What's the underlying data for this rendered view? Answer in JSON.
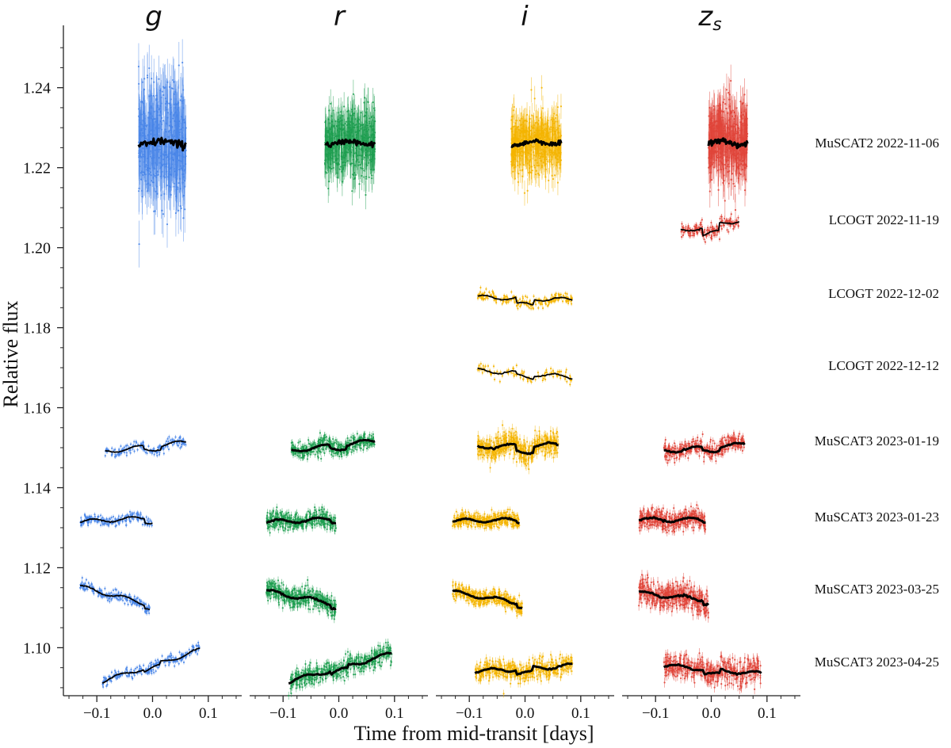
{
  "chart_data": {
    "type": "scatter",
    "panel_titles": [
      "g",
      "r",
      "i",
      "z",
      "s"
    ],
    "xlabel": "Time from mid-transit [days]",
    "ylabel": "Relative flux",
    "x_ticks": [
      -0.1,
      0.0,
      0.1
    ],
    "x_tick_labels": [
      "−0.1",
      "0.0",
      "0.1"
    ],
    "xlim": [
      -0.16,
      0.16
    ],
    "y_ticks": [
      1.1,
      1.12,
      1.14,
      1.16,
      1.18,
      1.2,
      1.22,
      1.24
    ],
    "y_tick_labels": [
      "1.10",
      "1.12",
      "1.14",
      "1.16",
      "1.18",
      "1.20",
      "1.22",
      "1.24"
    ],
    "ylim": [
      1.088,
      1.254
    ],
    "colors": {
      "g": "#4a86e8",
      "r": "#1e9e50",
      "i": "#f4b400",
      "zs": "#e0453a",
      "model": "#000000"
    },
    "rows": [
      "MuSCAT2 2022-11-06",
      "LCOGT 2022-11-19",
      "LCOGT 2022-12-02",
      "LCOGT 2022-12-12",
      "MuSCAT3 2023-01-19",
      "MuSCAT3 2023-01-23",
      "MuSCAT3 2023-03-25",
      "MuSCAT3 2023-04-25"
    ],
    "series": [
      {
        "panel": 0,
        "row": 0,
        "x_start": -0.025,
        "x_end": 0.06,
        "base": 1.2262,
        "slope": 0,
        "depth": 0,
        "scatter": 0.013,
        "dots": 520
      },
      {
        "panel": 1,
        "row": 0,
        "x_start": -0.025,
        "x_end": 0.065,
        "base": 1.2262,
        "slope": 0,
        "depth": 0,
        "scatter": 0.008,
        "dots": 520
      },
      {
        "panel": 2,
        "row": 0,
        "x_start": -0.025,
        "x_end": 0.065,
        "base": 1.2262,
        "slope": 0.004,
        "depth": 0,
        "scatter": 0.007,
        "dots": 520
      },
      {
        "panel": 3,
        "row": 0,
        "x_start": -0.005,
        "x_end": 0.065,
        "base": 1.2262,
        "slope": 0,
        "depth": 0,
        "scatter": 0.009,
        "dots": 500
      },
      {
        "panel": 3,
        "row": 1,
        "x_start": -0.055,
        "x_end": 0.05,
        "base": 1.2055,
        "slope": 0.026,
        "depth": 0.002,
        "scatter": 0.0015,
        "dots": 170
      },
      {
        "panel": 2,
        "row": 2,
        "x_start": -0.085,
        "x_end": 0.085,
        "base": 1.1873,
        "slope": -0.004,
        "depth": 0.0015,
        "scatter": 0.0012,
        "dots": 220
      },
      {
        "panel": 2,
        "row": 3,
        "x_start": -0.085,
        "x_end": 0.085,
        "base": 1.1685,
        "slope": -0.01,
        "depth": 0.0008,
        "scatter": 0.0013,
        "dots": 110
      },
      {
        "panel": 0,
        "row": 4,
        "x_start": -0.085,
        "x_end": 0.06,
        "base": 1.1502,
        "slope": 0.016,
        "depth": 0.0008,
        "scatter": 0.0012,
        "dots": 170
      },
      {
        "panel": 1,
        "row": 4,
        "x_start": -0.085,
        "x_end": 0.065,
        "base": 1.1505,
        "slope": 0.016,
        "depth": 0.0008,
        "scatter": 0.0018,
        "dots": 420
      },
      {
        "panel": 2,
        "row": 4,
        "x_start": -0.085,
        "x_end": 0.06,
        "base": 1.1505,
        "slope": 0.004,
        "depth": 0.0015,
        "scatter": 0.0028,
        "dots": 460
      },
      {
        "panel": 3,
        "row": 4,
        "x_start": -0.085,
        "x_end": 0.06,
        "base": 1.15,
        "slope": 0.012,
        "depth": 0.0008,
        "scatter": 0.0018,
        "dots": 360
      },
      {
        "panel": 0,
        "row": 5,
        "x_start": -0.13,
        "x_end": 0.0,
        "base": 1.132,
        "slope": 0.008,
        "depth": 0.001,
        "scatter": 0.0012,
        "dots": 200
      },
      {
        "panel": 1,
        "row": 5,
        "x_start": -0.13,
        "x_end": -0.005,
        "base": 1.1318,
        "slope": 0.006,
        "depth": 0.0005,
        "scatter": 0.002,
        "dots": 380
      },
      {
        "panel": 2,
        "row": 5,
        "x_start": -0.13,
        "x_end": -0.01,
        "base": 1.1318,
        "slope": 0.002,
        "depth": 0.0004,
        "scatter": 0.0017,
        "dots": 380
      },
      {
        "panel": 3,
        "row": 5,
        "x_start": -0.13,
        "x_end": -0.01,
        "base": 1.132,
        "slope": 0,
        "depth": 0.0004,
        "scatter": 0.0022,
        "dots": 380
      },
      {
        "panel": 0,
        "row": 6,
        "x_start": -0.13,
        "x_end": -0.005,
        "base": 1.113,
        "slope": -0.036,
        "depth": 0.0008,
        "scatter": 0.0012,
        "dots": 210
      },
      {
        "panel": 1,
        "row": 6,
        "x_start": -0.13,
        "x_end": -0.005,
        "base": 1.1125,
        "slope": -0.026,
        "depth": 0.0008,
        "scatter": 0.0022,
        "dots": 420
      },
      {
        "panel": 2,
        "row": 6,
        "x_start": -0.13,
        "x_end": -0.005,
        "base": 1.1125,
        "slope": -0.022,
        "depth": 0.0008,
        "scatter": 0.0017,
        "dots": 400
      },
      {
        "panel": 3,
        "row": 6,
        "x_start": -0.13,
        "x_end": -0.005,
        "base": 1.1128,
        "slope": -0.015,
        "depth": 0.0008,
        "scatter": 0.0028,
        "dots": 420
      },
      {
        "panel": 0,
        "row": 7,
        "x_start": -0.09,
        "x_end": 0.085,
        "base": 1.0955,
        "slope": 0.045,
        "depth": 0.0008,
        "scatter": 0.0012,
        "dots": 240
      },
      {
        "panel": 1,
        "row": 7,
        "x_start": -0.09,
        "x_end": 0.095,
        "base": 1.095,
        "slope": 0.038,
        "depth": 0.0008,
        "scatter": 0.0022,
        "dots": 460
      },
      {
        "panel": 2,
        "row": 7,
        "x_start": -0.09,
        "x_end": 0.085,
        "base": 1.0948,
        "slope": 0.008,
        "depth": 0.0012,
        "scatter": 0.0022,
        "dots": 440
      },
      {
        "panel": 3,
        "row": 7,
        "x_start": -0.085,
        "x_end": 0.09,
        "base": 1.0945,
        "slope": -0.012,
        "depth": 0.0012,
        "scatter": 0.0028,
        "dots": 440
      }
    ]
  }
}
